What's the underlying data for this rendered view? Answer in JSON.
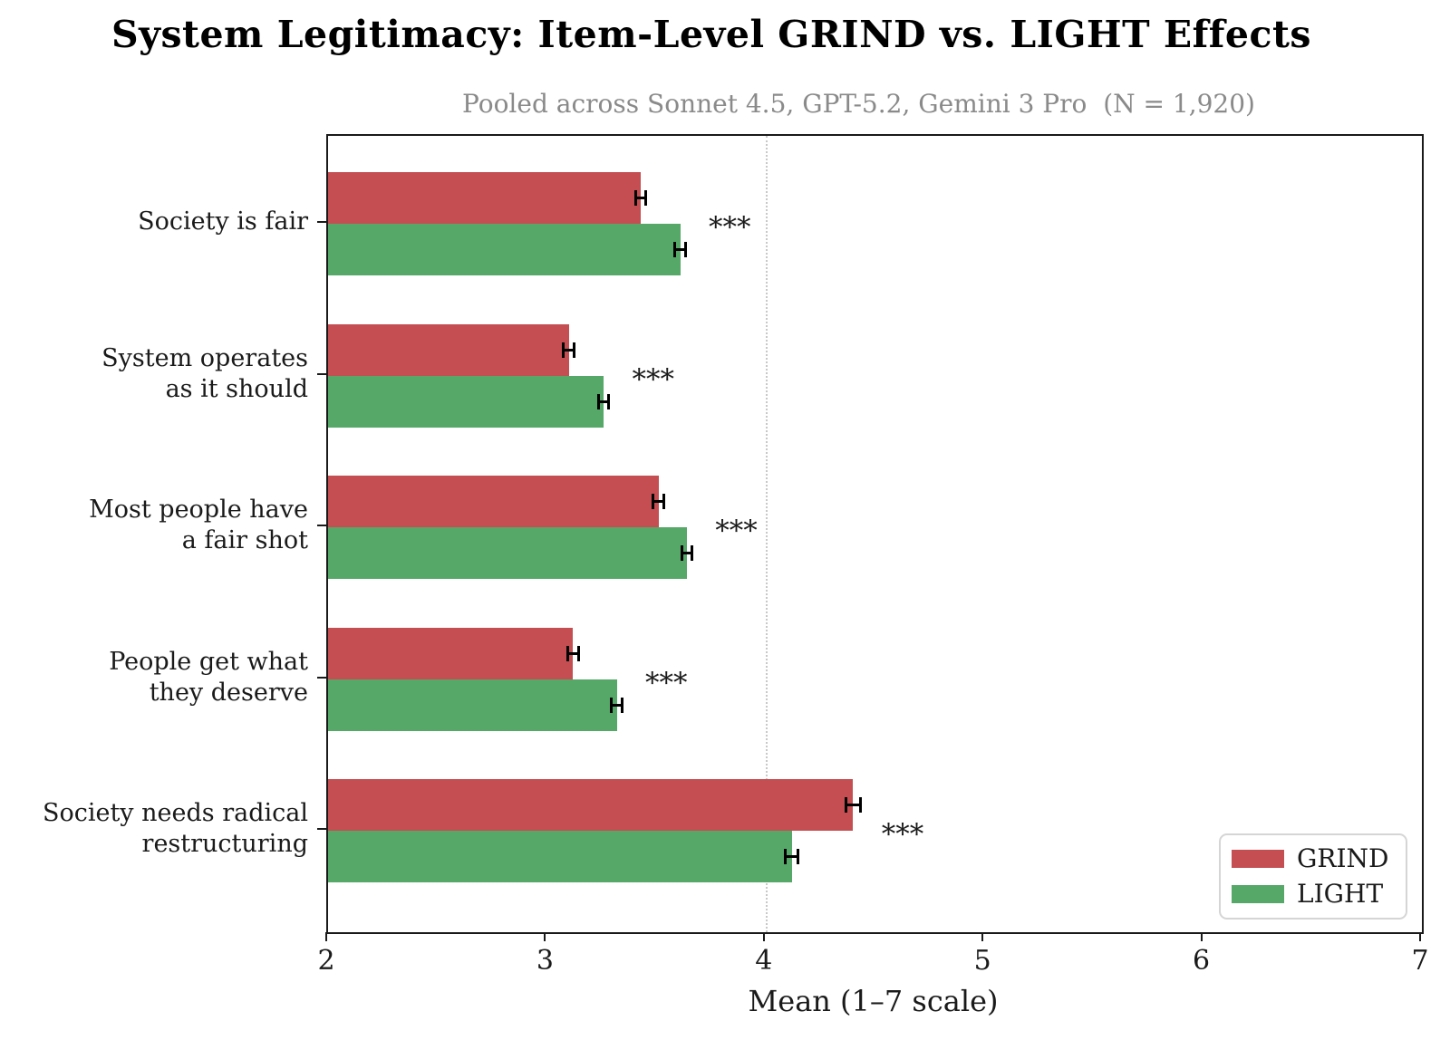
{
  "chart_data": {
    "type": "bar",
    "orientation": "horizontal",
    "title": "System Legitimacy: Item-Level GRIND vs. LIGHT Effects",
    "subtitle": "Pooled across Sonnet 4.5, GPT-5.2, Gemini 3 Pro  (N = 1,920)",
    "xlabel": "Mean (1–7 scale)",
    "xlim": [
      2,
      7
    ],
    "xticks": [
      2,
      3,
      4,
      5,
      6,
      7
    ],
    "refline_x": 4,
    "grid": "single dotted vertical reference line at x=4 only",
    "categories": [
      "Society is fair",
      "System operates\nas it should",
      "Most people have\na fair shot",
      "People get what\nthey deserve",
      "Society needs radical\nrestructuring"
    ],
    "series": [
      {
        "name": "GRIND",
        "color": "#c44e52",
        "values": [
          3.43,
          3.1,
          3.51,
          3.12,
          4.4
        ],
        "errors": [
          0.03,
          0.03,
          0.03,
          0.03,
          0.04
        ]
      },
      {
        "name": "LIGHT",
        "color": "#55a868",
        "values": [
          3.61,
          3.26,
          3.64,
          3.32,
          4.12
        ],
        "errors": [
          0.03,
          0.03,
          0.03,
          0.03,
          0.035
        ]
      }
    ],
    "significance": [
      "***",
      "***",
      "***",
      "***",
      "***"
    ],
    "legend": {
      "position": "lower right",
      "items": [
        {
          "label": "GRIND",
          "color": "#c44e52"
        },
        {
          "label": "LIGHT",
          "color": "#55a868"
        }
      ]
    }
  }
}
